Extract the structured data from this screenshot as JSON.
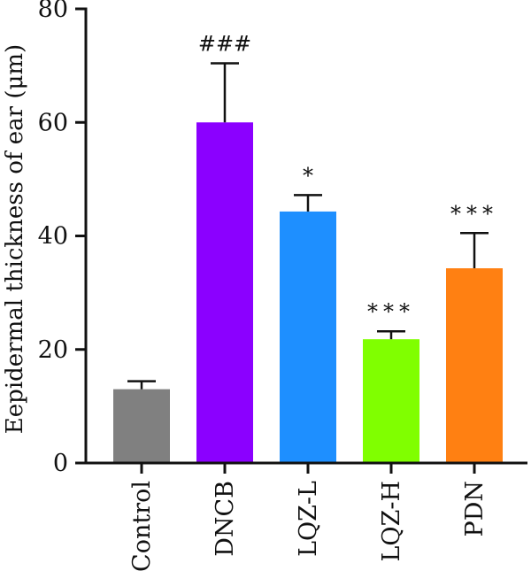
{
  "chart_data": {
    "type": "bar",
    "title": "",
    "xlabel": "",
    "ylabel": "Eepidermal thickness of ear (μm)",
    "ylim": [
      0,
      80
    ],
    "yticks": [
      0,
      20,
      40,
      60,
      80
    ],
    "categories": [
      "Control",
      "DNCB",
      "LQZ-L",
      "LQZ-H",
      "PDN"
    ],
    "values": [
      13,
      60,
      44.3,
      21.8,
      34.3
    ],
    "error_upper": [
      1.4,
      10.4,
      2.9,
      1.4,
      6.2
    ],
    "significance": [
      "",
      "###",
      "*",
      "***",
      "***"
    ],
    "colors": [
      "#808080",
      "#8b00ff",
      "#1e8fff",
      "#80ff00",
      "#ff8012"
    ],
    "grid": false,
    "legend": "none"
  }
}
